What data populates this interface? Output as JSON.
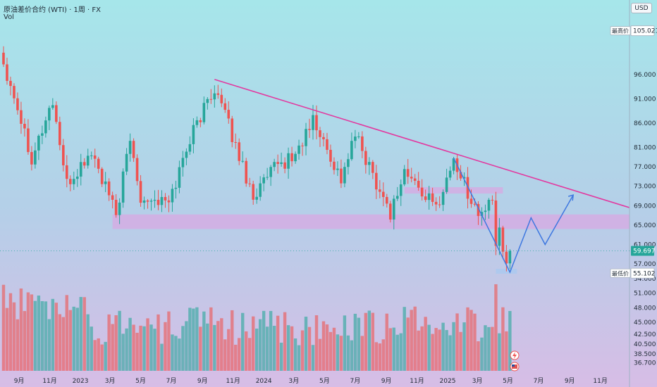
{
  "header": {
    "symbol_title": "原油差价合约 (WTI) · 1周 · FX",
    "volume_label": "Vol"
  },
  "currency_button": "USD",
  "chart_data": {
    "type": "candlestick",
    "timeframe": "1周",
    "y_axis": {
      "range": [
        35,
        107
      ],
      "ticks": [
        36.7,
        38.5,
        40.5,
        42.5,
        45.0,
        48.0,
        51.0,
        54.0,
        57.0,
        61.0,
        65.0,
        69.0,
        73.0,
        77.0,
        81.0,
        86.0,
        91.0,
        96.0
      ],
      "tick_labels": [
        "36.700",
        "38.500",
        "40.500",
        "42.500",
        "45.000",
        "48.000",
        "51.000",
        "54.000",
        "57.000",
        "61.000",
        "65.000",
        "69.000",
        "73.000",
        "77.000",
        "81.000",
        "86.000",
        "91.000",
        "96.000"
      ]
    },
    "x_axis": {
      "range": [
        "2022-07-25",
        "2025-12-29"
      ],
      "ticks": [
        "2022-09-01",
        "2022-11-01",
        "2023-01-01",
        "2023-03-01",
        "2023-05-01",
        "2023-07-01",
        "2023-09-01",
        "2023-11-01",
        "2024-01-01",
        "2024-03-01",
        "2024-05-01",
        "2024-07-01",
        "2024-09-01",
        "2024-11-01",
        "2025-01-01",
        "2025-03-01",
        "2025-05-01",
        "2025-07-01",
        "2025-09-01",
        "2025-11-01"
      ],
      "tick_labels": [
        "9月",
        "11月",
        "2023",
        "3月",
        "5月",
        "7月",
        "9月",
        "11月",
        "2024",
        "3月",
        "5月",
        "7月",
        "9月",
        "11月",
        "2025",
        "3月",
        "5月",
        "7月",
        "9月",
        "11月"
      ]
    },
    "price_markers": [
      {
        "label": "最高价",
        "value": "105.021",
        "y": 105.02
      },
      {
        "label": "",
        "value": "59.697",
        "y": 59.7,
        "color": "#26a69a"
      },
      {
        "label": "最低价",
        "value": "55.102",
        "y": 55.1
      }
    ],
    "anchors": [
      {
        "date": "2022-07-25",
        "close": 100.5
      },
      {
        "date": "2022-08-22",
        "close": 92.0
      },
      {
        "date": "2022-09-26",
        "close": 79.0
      },
      {
        "date": "2022-11-07",
        "close": 90.5
      },
      {
        "date": "2022-12-05",
        "close": 73.0
      },
      {
        "date": "2023-01-23",
        "close": 80.0
      },
      {
        "date": "2023-03-13",
        "close": 67.0
      },
      {
        "date": "2023-04-10",
        "close": 82.5
      },
      {
        "date": "2023-05-01",
        "close": 71.0
      },
      {
        "date": "2023-06-26",
        "close": 69.5
      },
      {
        "date": "2023-08-07",
        "close": 83.0
      },
      {
        "date": "2023-09-25",
        "close": 93.5
      },
      {
        "date": "2023-10-16",
        "close": 87.5
      },
      {
        "date": "2023-12-11",
        "close": 71.0
      },
      {
        "date": "2024-01-22",
        "close": 76.5
      },
      {
        "date": "2024-03-04",
        "close": 79.5
      },
      {
        "date": "2024-04-08",
        "close": 86.5
      },
      {
        "date": "2024-06-03",
        "close": 74.5
      },
      {
        "date": "2024-07-01",
        "close": 83.5
      },
      {
        "date": "2024-09-09",
        "close": 67.5
      },
      {
        "date": "2024-10-07",
        "close": 76.0
      },
      {
        "date": "2024-12-09",
        "close": 68.5
      },
      {
        "date": "2025-01-13",
        "close": 78.5
      },
      {
        "date": "2025-03-03",
        "close": 67.0
      },
      {
        "date": "2025-03-31",
        "close": 69.5
      },
      {
        "date": "2025-04-07",
        "close": 61.0
      },
      {
        "date": "2025-04-14",
        "close": 63.5
      },
      {
        "date": "2025-04-28",
        "close": 58.3
      },
      {
        "date": "2025-05-05",
        "close": 59.7
      }
    ],
    "volume": {
      "range": [
        0,
        3.2
      ]
    },
    "annotations": {
      "trendline": {
        "color": "#e23aa0",
        "points": [
          [
            "2023-09-25",
            95.0
          ],
          [
            "2025-12-29",
            68.6
          ]
        ]
      },
      "support_zone": {
        "color": "#d8a8e3",
        "x": [
          "2023-03-06",
          "2025-12-29"
        ],
        "y": [
          64.2,
          67.2
        ]
      },
      "resistance_zone": {
        "color": "#d8a8e3",
        "x": [
          "2024-10-07",
          "2025-04-21"
        ],
        "y": [
          71.5,
          72.8
        ]
      },
      "low_zone": {
        "color": "#a8c8f0",
        "x": [
          "2025-04-07",
          "2025-05-19"
        ],
        "y": [
          55.0,
          56.0
        ]
      },
      "projection_path": {
        "color": "#3f78e0",
        "points": [
          [
            "2025-01-13",
            78.8
          ],
          [
            "2025-05-05",
            55.3
          ],
          [
            "2025-06-16",
            66.5
          ],
          [
            "2025-07-14",
            61.0
          ],
          [
            "2025-09-08",
            71.2
          ]
        ]
      }
    },
    "colors": {
      "up": "#26a69a",
      "down": "#ef5350"
    }
  }
}
